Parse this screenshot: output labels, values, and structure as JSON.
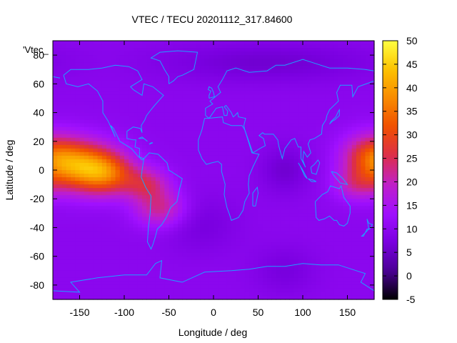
{
  "chart_data": {
    "type": "heatmap",
    "title": "VTEC / TECU 20201112_317.84600",
    "xlabel": "Longitude / deg",
    "ylabel": "Latitude / deg",
    "key_label": "'Vtec_",
    "xlim": [
      -180,
      180
    ],
    "ylim": [
      -90,
      90
    ],
    "color_range": [
      -5,
      50
    ],
    "x_ticks": [
      -150,
      -100,
      -50,
      0,
      50,
      100,
      150
    ],
    "y_ticks": [
      -80,
      -60,
      -40,
      -20,
      0,
      20,
      40,
      60,
      80
    ],
    "cb_ticks": [
      -5,
      0,
      5,
      10,
      15,
      20,
      25,
      30,
      35,
      40,
      45,
      50
    ],
    "palette": [
      "#000000",
      "#4b0096",
      "#7a00e0",
      "#a010ff",
      "#c020c8",
      "#dc2e4a",
      "#f05000",
      "#f88a00",
      "#fcc200",
      "#ffff40"
    ],
    "coastline_color": "#1ea0ff",
    "background_level": 10,
    "features": [
      {
        "lon": -150,
        "lat": 3,
        "sx": 28,
        "sy": 12,
        "amp": 26
      },
      {
        "lon": -118,
        "lat": -3,
        "sx": 22,
        "sy": 10,
        "amp": 17
      },
      {
        "lon": -75,
        "lat": -10,
        "sx": 18,
        "sy": 8,
        "amp": 12
      },
      {
        "lon": -60,
        "lat": -27,
        "sx": 20,
        "sy": 9,
        "amp": 12
      },
      {
        "lon": 175,
        "lat": 10,
        "sx": 22,
        "sy": 11,
        "amp": 15
      },
      {
        "lon": 160,
        "lat": -10,
        "sx": 18,
        "sy": 8,
        "amp": 9
      },
      {
        "lon": 60,
        "lat": 75,
        "sx": 90,
        "sy": 10,
        "amp": -4
      },
      {
        "lon": 80,
        "lat": 0,
        "sx": 20,
        "sy": 12,
        "amp": -4
      },
      {
        "lon": -15,
        "lat": -38,
        "sx": 30,
        "sy": 14,
        "amp": -3
      },
      {
        "lon": 80,
        "lat": -70,
        "sx": 25,
        "sy": 12,
        "amp": -3
      }
    ]
  }
}
